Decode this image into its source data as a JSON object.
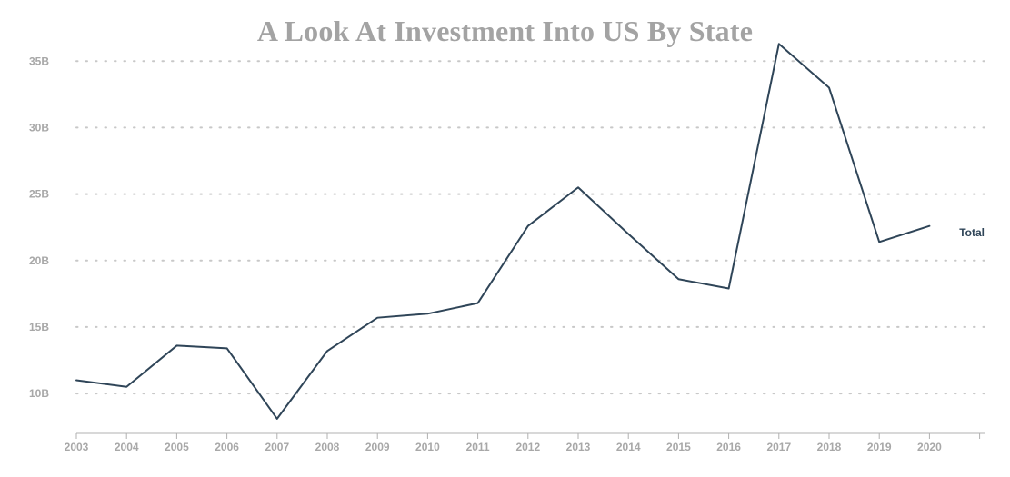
{
  "chart_data": {
    "type": "line",
    "title": "A Look At Investment Into US By State",
    "xlabel": "",
    "ylabel": "",
    "x": [
      "2003",
      "2004",
      "2005",
      "2006",
      "2007",
      "2008",
      "2009",
      "2010",
      "2011",
      "2012",
      "2013",
      "2014",
      "2015",
      "2016",
      "2017",
      "2018",
      "2019",
      "2020"
    ],
    "y_ticks": [
      "10B",
      "15B",
      "20B",
      "25B",
      "30B",
      "35B"
    ],
    "y_tick_values": [
      10,
      15,
      20,
      25,
      30,
      35
    ],
    "ylim": [
      7,
      37
    ],
    "grid": "horizontal-dotted",
    "series": [
      {
        "name": "Total",
        "color": "#2f4558",
        "values": [
          11.0,
          10.5,
          13.6,
          13.4,
          8.1,
          13.2,
          15.7,
          16.0,
          16.8,
          22.6,
          25.5,
          22.0,
          18.6,
          17.9,
          36.3,
          33.0,
          21.4,
          22.6
        ]
      }
    ],
    "colors": {
      "line": "#2f4558",
      "grid": "#c8c8c8",
      "axis": "#b0b0b0",
      "tick_text": "#a8a8a8",
      "title": "#a3a3a3"
    }
  }
}
